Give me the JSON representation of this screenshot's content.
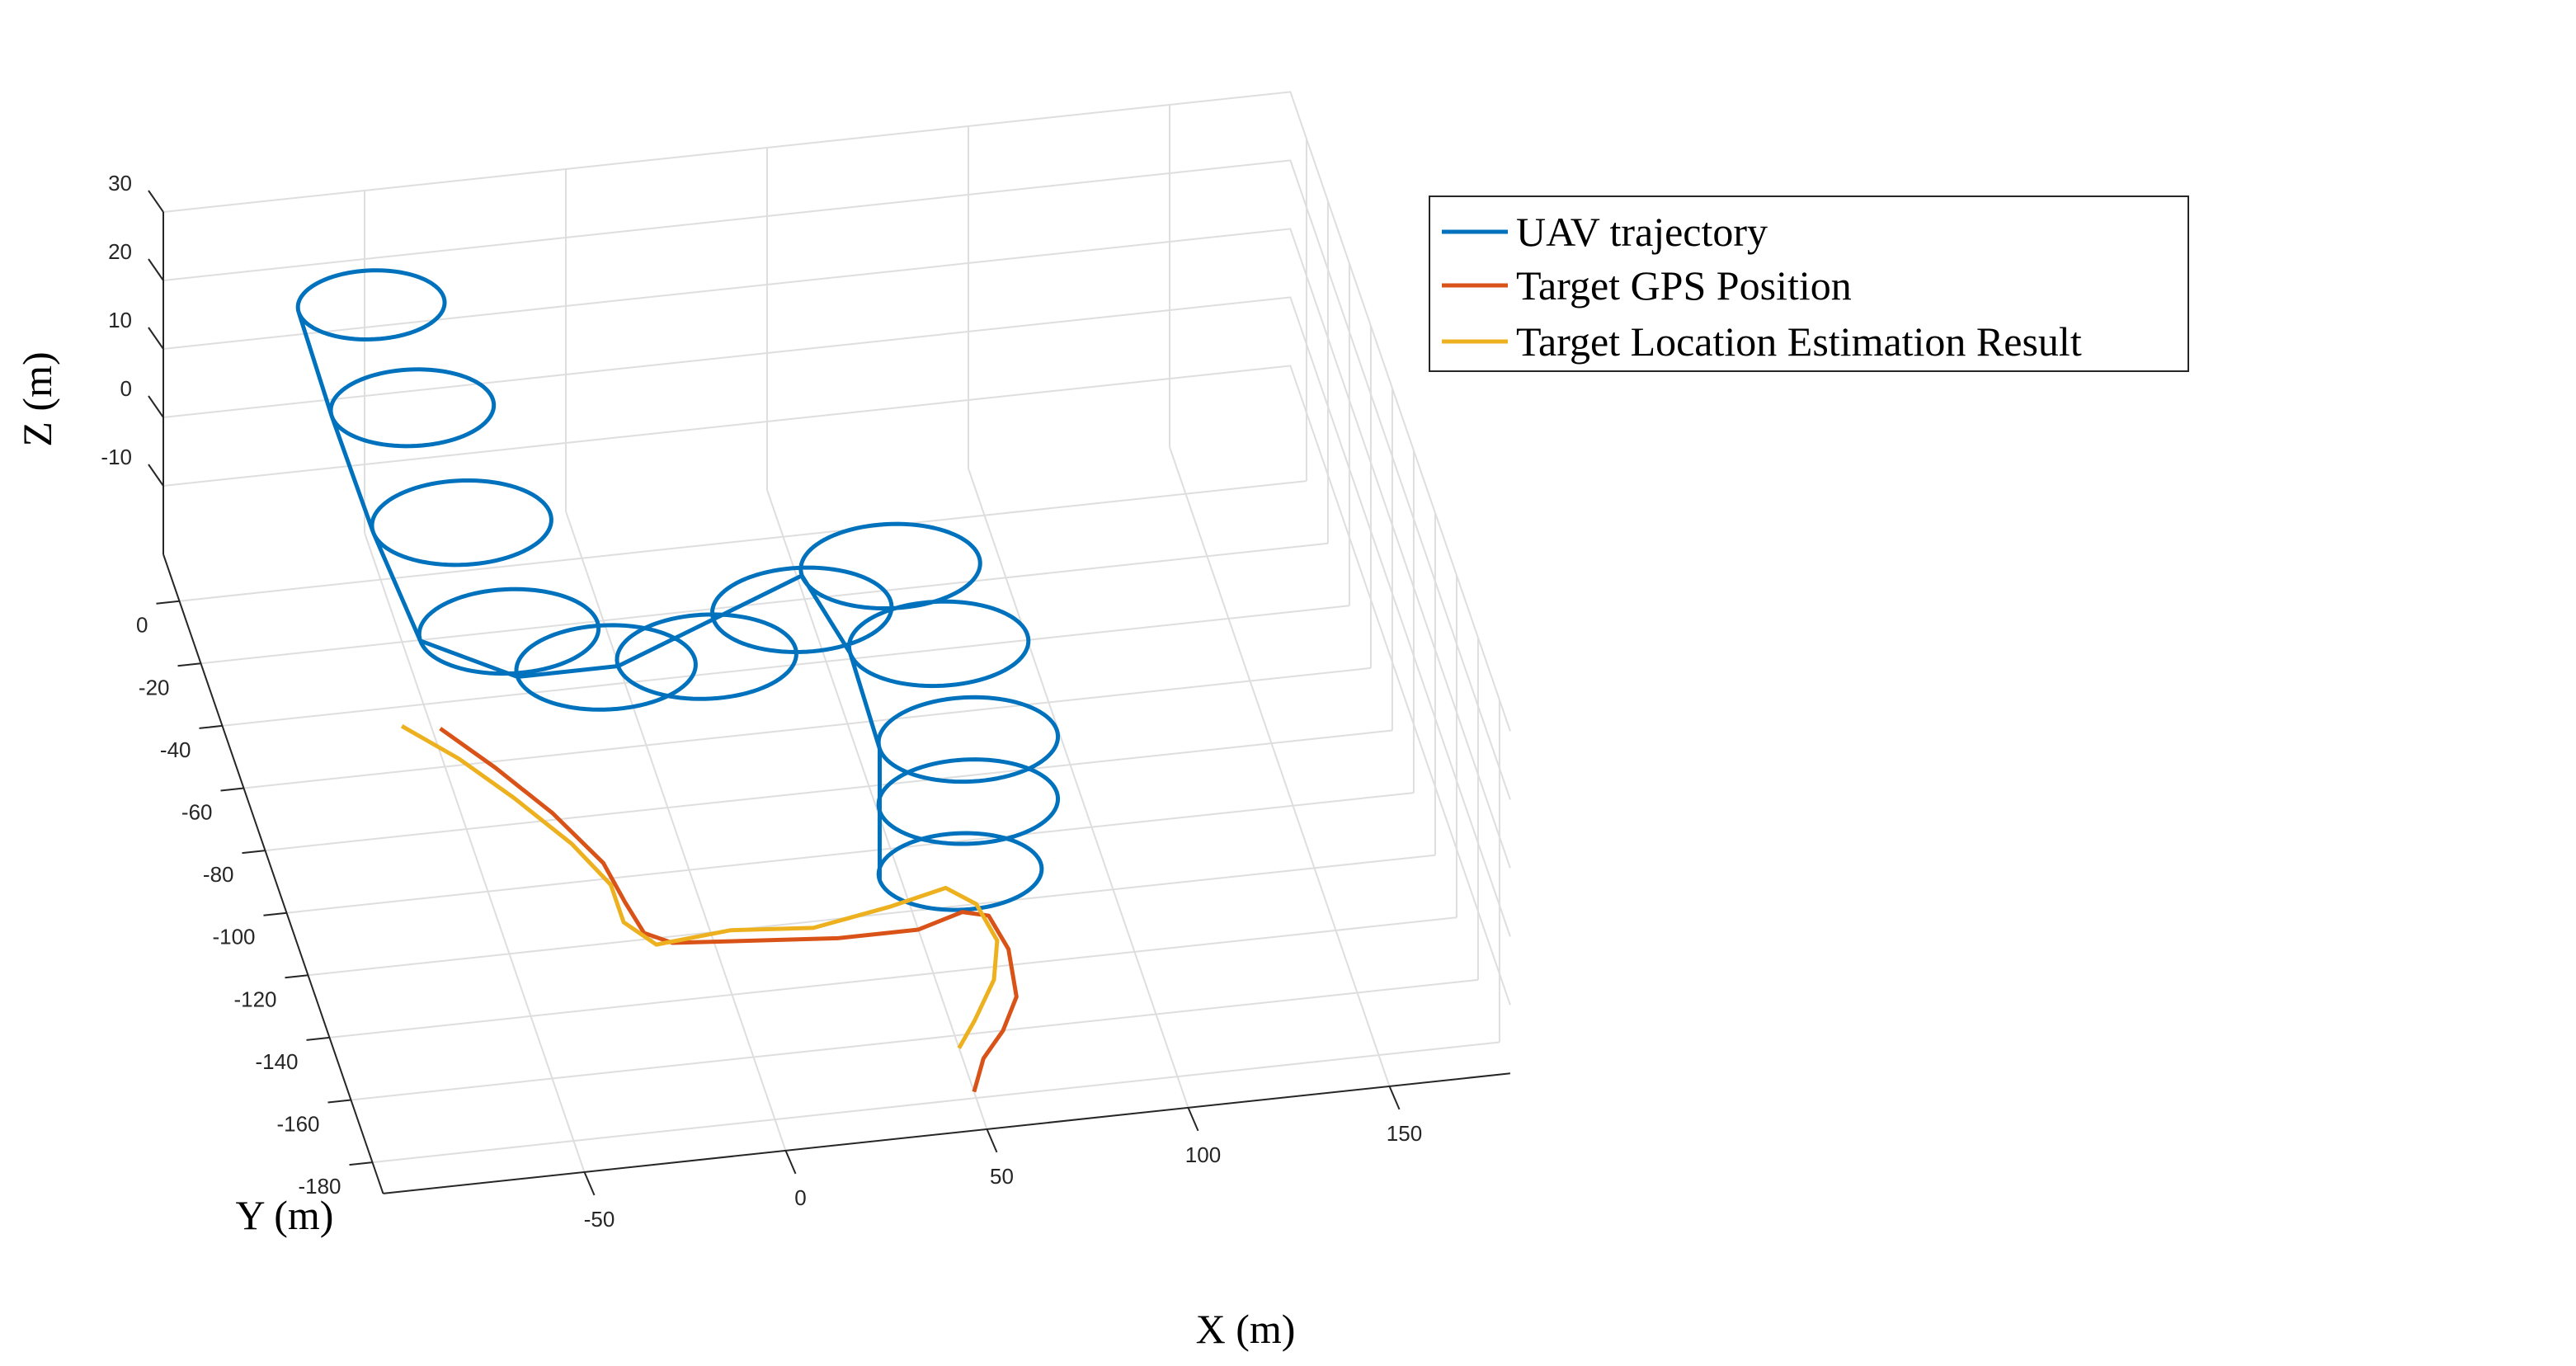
{
  "chart_data": {
    "type": "line3d",
    "xlabel": "X (m)",
    "ylabel": "Y (m)",
    "zlabel": "Z (m)",
    "xticks": [
      -50,
      0,
      50,
      100,
      150
    ],
    "yticks": [
      0,
      -20,
      -40,
      -60,
      -80,
      -100,
      -120,
      -140,
      -160,
      -180
    ],
    "zticks": [
      30,
      20,
      10,
      0,
      -10
    ],
    "xlim": [
      -100,
      180
    ],
    "ylim": [
      -190,
      15
    ],
    "zlim": [
      -20,
      30
    ],
    "legend_position": "top-right",
    "grid": true,
    "series": [
      {
        "name": "UAV trajectory",
        "color": "#0072BD",
        "segments": [
          {
            "note": "orbit",
            "cx": -55,
            "cy": -10,
            "r": 18,
            "z": 25,
            "turns": 1
          },
          {
            "cx": -48,
            "cy": -22,
            "r": 20,
            "z": 15,
            "turns": 1
          },
          {
            "cx": -40,
            "cy": -38,
            "r": 22,
            "z": 5,
            "turns": 1
          },
          {
            "cx": -32,
            "cy": -52,
            "r": 22,
            "z": -5,
            "turns": 1
          },
          {
            "cx": -10,
            "cy": -60,
            "r": 22,
            "z": -8,
            "turns": 1
          },
          {
            "cx": 15,
            "cy": -60,
            "r": 22,
            "z": -8,
            "turns": 1
          },
          {
            "cx": 40,
            "cy": -55,
            "r": 22,
            "z": -5,
            "turns": 1
          },
          {
            "cx": 62,
            "cy": -55,
            "r": 22,
            "z": 0,
            "turns": 1
          },
          {
            "cx": 70,
            "cy": -70,
            "r": 22,
            "z": -5,
            "turns": 1
          },
          {
            "cx": 72,
            "cy": -90,
            "r": 22,
            "z": -10,
            "turns": 1
          },
          {
            "cx": 68,
            "cy": -105,
            "r": 22,
            "z": -12,
            "turns": 1
          },
          {
            "cx": 62,
            "cy": -120,
            "r": 20,
            "z": -15,
            "turns": 1
          }
        ]
      },
      {
        "name": "Target GPS Position",
        "color": "#D95319",
        "x": [
          -48,
          -38,
          -28,
          -20,
          -18,
          -16,
          -10,
          10,
          30,
          50,
          62,
          68,
          70,
          68,
          62,
          55,
          50
        ],
        "y": [
          -48,
          -62,
          -78,
          -95,
          -108,
          -118,
          -122,
          -124,
          -126,
          -126,
          -122,
          -124,
          -135,
          -150,
          -160,
          -168,
          -178
        ],
        "z": [
          0,
          0,
          0,
          0,
          0,
          0,
          0,
          0,
          0,
          0,
          0,
          0,
          0,
          0,
          0,
          0,
          0
        ]
      },
      {
        "name": "Target Location Estimation Result",
        "color": "#EDB120",
        "x": [
          -57,
          -46,
          -36,
          -26,
          -20,
          -20,
          -14,
          5,
          25,
          45,
          60,
          66,
          68,
          64,
          56,
          50
        ],
        "y": [
          -46,
          -58,
          -72,
          -88,
          -102,
          -114,
          -122,
          -120,
          -122,
          -118,
          -114,
          -120,
          -132,
          -144,
          -156,
          -164
        ],
        "z": [
          0,
          0,
          0,
          0,
          0,
          0,
          0,
          0,
          0,
          0,
          0,
          0,
          0,
          0,
          0,
          0
        ]
      }
    ]
  }
}
